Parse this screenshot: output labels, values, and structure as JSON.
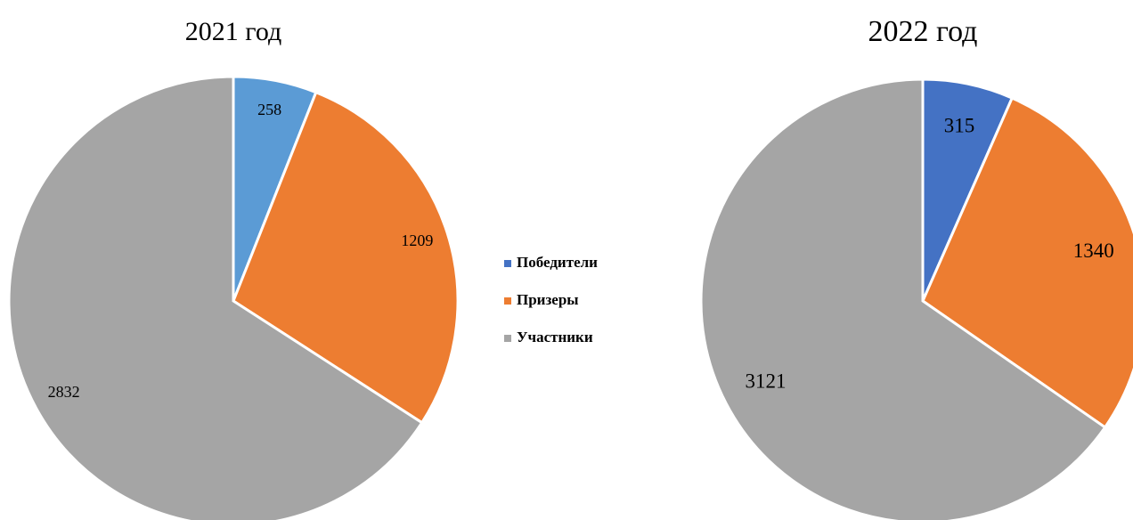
{
  "chart_data": [
    {
      "type": "pie",
      "title": "2021 год",
      "categories": [
        "Победители",
        "Призеры",
        "Участники"
      ],
      "values": [
        258,
        1209,
        2832
      ],
      "colors": [
        "#5b9bd5",
        "#ed7d31",
        "#a5a5a5"
      ]
    },
    {
      "type": "pie",
      "title": "2022 год",
      "categories": [
        "Победители",
        "Призеры",
        "Участники"
      ],
      "values": [
        315,
        1340,
        3121
      ],
      "colors": [
        "#4472c4",
        "#ed7d31",
        "#a5a5a5"
      ],
      "legend": "left"
    }
  ]
}
